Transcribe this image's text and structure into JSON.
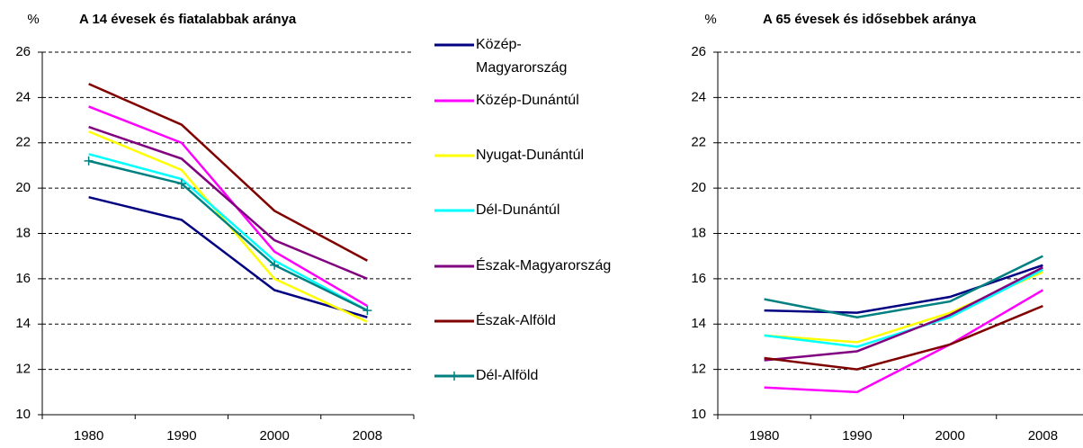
{
  "chart_data": [
    {
      "type": "line",
      "title": "A 14 évesek és fiatalabbak aránya",
      "ylabel": "%",
      "categories": [
        "1980",
        "1990",
        "2000",
        "2008"
      ],
      "ylim": [
        10,
        26
      ],
      "yticks": [
        10,
        12,
        14,
        16,
        18,
        20,
        22,
        24,
        26
      ],
      "grid": true,
      "legend": "right",
      "series": [
        {
          "name": "Közép-Magyarország",
          "color": "#000080",
          "values": [
            19.6,
            18.6,
            15.5,
            14.3
          ]
        },
        {
          "name": "Közép-Dunántúl",
          "color": "#ff00ff",
          "values": [
            23.6,
            22.0,
            17.2,
            14.8
          ]
        },
        {
          "name": "Nyugat-Dunántúl",
          "color": "#ffff00",
          "values": [
            22.5,
            20.8,
            16.0,
            14.1
          ]
        },
        {
          "name": "Dél-Dunántúl",
          "color": "#00ffff",
          "values": [
            21.5,
            20.4,
            16.8,
            14.6
          ]
        },
        {
          "name": "Észak-Magyarország",
          "color": "#800080",
          "values": [
            22.7,
            21.3,
            17.7,
            16.0
          ]
        },
        {
          "name": "Észak-Alföld",
          "color": "#800000",
          "values": [
            24.6,
            22.8,
            19.0,
            16.8
          ]
        },
        {
          "name": "Dél-Alföld",
          "color": "#008080",
          "marker": "+",
          "values": [
            21.2,
            20.2,
            16.6,
            14.6
          ]
        }
      ]
    },
    {
      "type": "line",
      "title": "A 65 évesek és idősebbek aránya",
      "ylabel": "%",
      "categories": [
        "1980",
        "1990",
        "2000",
        "2008"
      ],
      "ylim": [
        10,
        26
      ],
      "yticks": [
        10,
        12,
        14,
        16,
        18,
        20,
        22,
        24,
        26
      ],
      "grid": true,
      "series": [
        {
          "name": "Közép-Magyarország",
          "color": "#000080",
          "values": [
            14.6,
            14.5,
            15.2,
            16.6
          ]
        },
        {
          "name": "Közép-Dunántúl",
          "color": "#ff00ff",
          "values": [
            11.2,
            11.0,
            13.1,
            15.5
          ]
        },
        {
          "name": "Nyugat-Dunántúl",
          "color": "#ffff00",
          "values": [
            13.5,
            13.2,
            14.5,
            16.3
          ]
        },
        {
          "name": "Dél-Dunántúl",
          "color": "#00ffff",
          "values": [
            13.5,
            13.0,
            14.3,
            16.4
          ]
        },
        {
          "name": "Észak-Magyarország",
          "color": "#800080",
          "values": [
            12.4,
            12.8,
            14.4,
            16.5
          ]
        },
        {
          "name": "Észak-Alföld",
          "color": "#800000",
          "values": [
            12.5,
            12.0,
            13.1,
            14.8
          ]
        },
        {
          "name": "Dél-Alföld",
          "color": "#008080",
          "values": [
            15.1,
            14.3,
            15.0,
            17.0
          ]
        }
      ]
    }
  ]
}
